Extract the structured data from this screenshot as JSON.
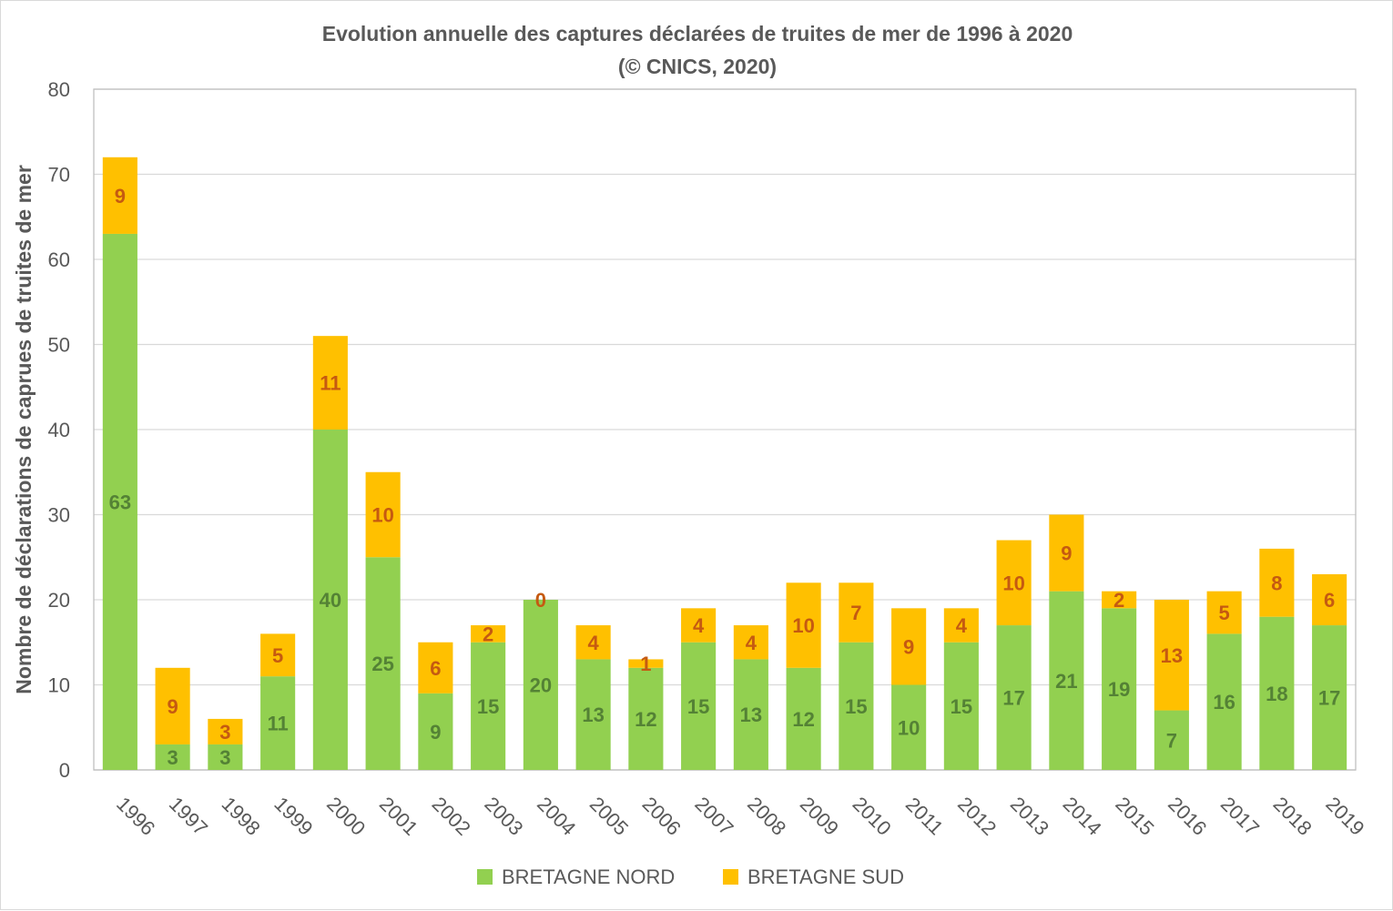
{
  "chart_data": {
    "type": "bar",
    "stacked": true,
    "title": "Evolution annuelle des captures déclarées de truites de mer de 1996 à 2020",
    "subtitle": "(© CNICS, 2020)",
    "xlabel": "",
    "ylabel": "Nombre de déclarations de caprues de truites de mer",
    "ylim": [
      0,
      80
    ],
    "yticks": [
      0,
      10,
      20,
      30,
      40,
      50,
      60,
      70,
      80
    ],
    "grid": true,
    "legend_position": "bottom",
    "categories": [
      "1996",
      "1997",
      "1998",
      "1999",
      "2000",
      "2001",
      "2002",
      "2003",
      "2004",
      "2005",
      "2006",
      "2007",
      "2008",
      "2009",
      "2010",
      "2011",
      "2012",
      "2013",
      "2014",
      "2015",
      "2016",
      "2017",
      "2018",
      "2019"
    ],
    "series": [
      {
        "name": "BRETAGNE NORD",
        "color": "#92d050",
        "label_color": "#548235",
        "values": [
          63,
          3,
          3,
          11,
          40,
          25,
          9,
          15,
          20,
          13,
          12,
          15,
          13,
          12,
          15,
          10,
          15,
          17,
          21,
          19,
          7,
          16,
          18,
          17
        ]
      },
      {
        "name": "BRETAGNE SUD",
        "color": "#ffc000",
        "label_color": "#c55a11",
        "values": [
          9,
          9,
          3,
          5,
          11,
          10,
          6,
          2,
          0,
          4,
          1,
          4,
          4,
          10,
          7,
          9,
          4,
          10,
          9,
          2,
          13,
          5,
          8,
          6
        ]
      }
    ]
  }
}
